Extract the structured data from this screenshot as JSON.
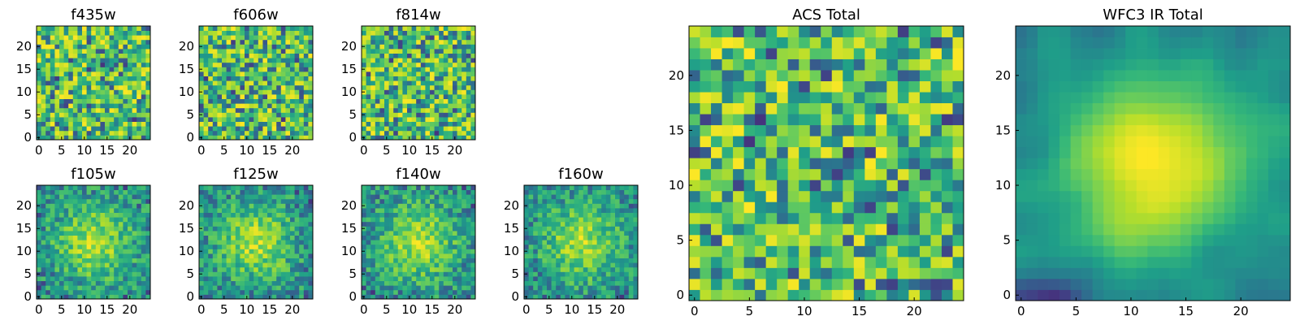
{
  "chart_data": [
    {
      "type": "heatmap",
      "title": "f435w",
      "grid_size": 25,
      "xticks": [
        0,
        5,
        10,
        15,
        20
      ],
      "yticks": [
        0,
        5,
        10,
        15,
        20
      ],
      "xlim": [
        0,
        24
      ],
      "ylim": [
        0,
        24
      ],
      "colormap": "viridis",
      "pattern": "noise",
      "seed": 11
    },
    {
      "type": "heatmap",
      "title": "f606w",
      "grid_size": 25,
      "xticks": [
        0,
        5,
        10,
        15,
        20
      ],
      "yticks": [
        0,
        5,
        10,
        15,
        20
      ],
      "xlim": [
        0,
        24
      ],
      "ylim": [
        0,
        24
      ],
      "colormap": "viridis",
      "pattern": "noise",
      "seed": 23
    },
    {
      "type": "heatmap",
      "title": "f814w",
      "grid_size": 25,
      "xticks": [
        0,
        5,
        10,
        15,
        20
      ],
      "yticks": [
        0,
        5,
        10,
        15,
        20
      ],
      "xlim": [
        0,
        24
      ],
      "ylim": [
        0,
        24
      ],
      "colormap": "viridis",
      "pattern": "noise",
      "seed": 37
    },
    {
      "type": "heatmap",
      "title": "f105w",
      "grid_size": 25,
      "xticks": [
        0,
        5,
        10,
        15,
        20
      ],
      "yticks": [
        0,
        5,
        10,
        15,
        20
      ],
      "xlim": [
        0,
        24
      ],
      "ylim": [
        0,
        24
      ],
      "colormap": "viridis",
      "pattern": "source",
      "seed": 41
    },
    {
      "type": "heatmap",
      "title": "f125w",
      "grid_size": 25,
      "xticks": [
        0,
        5,
        10,
        15,
        20
      ],
      "yticks": [
        0,
        5,
        10,
        15,
        20
      ],
      "xlim": [
        0,
        24
      ],
      "ylim": [
        0,
        24
      ],
      "colormap": "viridis",
      "pattern": "source",
      "seed": 53
    },
    {
      "type": "heatmap",
      "title": "f140w",
      "grid_size": 25,
      "xticks": [
        0,
        5,
        10,
        15,
        20
      ],
      "yticks": [
        0,
        5,
        10,
        15,
        20
      ],
      "xlim": [
        0,
        24
      ],
      "ylim": [
        0,
        24
      ],
      "colormap": "viridis",
      "pattern": "source",
      "seed": 67
    },
    {
      "type": "heatmap",
      "title": "f160w",
      "grid_size": 25,
      "xticks": [
        0,
        5,
        10,
        15,
        20
      ],
      "yticks": [
        0,
        5,
        10,
        15,
        20
      ],
      "xlim": [
        0,
        24
      ],
      "ylim": [
        0,
        24
      ],
      "colormap": "viridis",
      "pattern": "source",
      "seed": 79
    },
    {
      "type": "heatmap",
      "title": "ACS Total",
      "grid_size": 25,
      "xticks": [
        0,
        5,
        10,
        15,
        20
      ],
      "yticks": [
        0,
        5,
        10,
        15,
        20
      ],
      "xlim": [
        0,
        24
      ],
      "ylim": [
        0,
        24
      ],
      "colormap": "viridis",
      "pattern": "noise",
      "seed": 83
    },
    {
      "type": "heatmap",
      "title": "WFC3 IR Total",
      "grid_size": 25,
      "xticks": [
        0,
        5,
        10,
        15,
        20
      ],
      "yticks": [
        0,
        5,
        10,
        15,
        20
      ],
      "xlim": [
        0,
        24
      ],
      "ylim": [
        0,
        24
      ],
      "colormap": "viridis",
      "pattern": "smooth-source",
      "seed": 97
    }
  ]
}
